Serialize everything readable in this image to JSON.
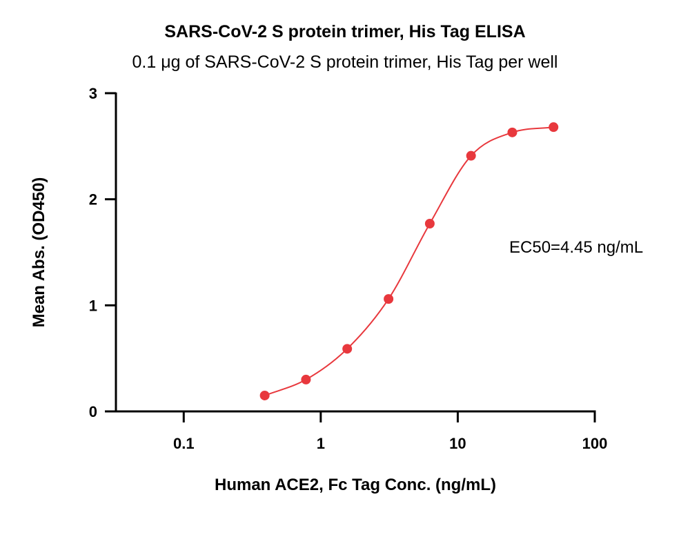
{
  "chart_data": {
    "type": "scatter",
    "title": "SARS-CoV-2 S protein trimer, His Tag ELISA",
    "subtitle": "0.1 μg of SARS-CoV-2 S protein trimer, His Tag per well",
    "xlabel": "Human ACE2, Fc Tag Conc. (ng/mL)",
    "ylabel": "Mean Abs. (OD450)",
    "x_scale": "log",
    "xlim": [
      0.032,
      100
    ],
    "ylim": [
      0,
      3
    ],
    "x_ticks": [
      "0.1",
      "1",
      "10",
      "100"
    ],
    "y_ticks": [
      "0",
      "1",
      "2",
      "3"
    ],
    "grid": false,
    "legend": "none",
    "series": [
      {
        "color": "#e8383d",
        "x": [
          0.39,
          0.78,
          1.56,
          3.125,
          6.25,
          12.5,
          25,
          50
        ],
        "y": [
          0.15,
          0.3,
          0.59,
          1.06,
          1.77,
          2.41,
          2.63,
          2.68
        ],
        "fit": "4PL"
      }
    ],
    "fit_range": [
      0.39,
      50
    ],
    "annotations": [
      {
        "text": "EC50=4.45 ng/mL"
      }
    ]
  }
}
